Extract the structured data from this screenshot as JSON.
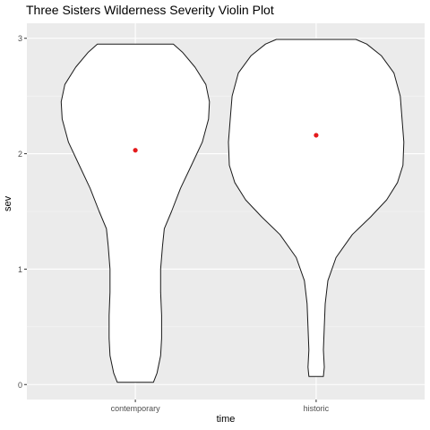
{
  "chart_data": {
    "type": "violin",
    "title": "Three Sisters Wilderness Severity Violin Plot",
    "xlabel": "time",
    "ylabel": "sev",
    "categories": [
      "contemporary",
      "historic"
    ],
    "ylim": [
      -0.13,
      3.13
    ],
    "yticks": [
      0,
      1,
      2,
      3
    ],
    "grid": true,
    "mean_point_color": "#e41a1c",
    "panel_background": "#ebebeb",
    "violins": [
      {
        "category": "contemporary",
        "mean": 2.03,
        "profile": [
          {
            "y": 0.02,
            "hw": 0.1
          },
          {
            "y": 0.1,
            "hw": 0.12
          },
          {
            "y": 0.25,
            "hw": 0.14
          },
          {
            "y": 0.4,
            "hw": 0.145
          },
          {
            "y": 0.6,
            "hw": 0.145
          },
          {
            "y": 0.8,
            "hw": 0.14
          },
          {
            "y": 1.0,
            "hw": 0.14
          },
          {
            "y": 1.2,
            "hw": 0.15
          },
          {
            "y": 1.35,
            "hw": 0.16
          },
          {
            "y": 1.5,
            "hw": 0.2
          },
          {
            "y": 1.7,
            "hw": 0.25
          },
          {
            "y": 1.9,
            "hw": 0.31
          },
          {
            "y": 2.1,
            "hw": 0.37
          },
          {
            "y": 2.3,
            "hw": 0.405
          },
          {
            "y": 2.45,
            "hw": 0.41
          },
          {
            "y": 2.6,
            "hw": 0.39
          },
          {
            "y": 2.75,
            "hw": 0.33
          },
          {
            "y": 2.88,
            "hw": 0.26
          },
          {
            "y": 2.95,
            "hw": 0.21
          }
        ]
      },
      {
        "category": "historic",
        "mean": 2.16,
        "profile": [
          {
            "y": 0.07,
            "hw": 0.04
          },
          {
            "y": 0.15,
            "hw": 0.045
          },
          {
            "y": 0.3,
            "hw": 0.04
          },
          {
            "y": 0.5,
            "hw": 0.045
          },
          {
            "y": 0.7,
            "hw": 0.05
          },
          {
            "y": 0.9,
            "hw": 0.065
          },
          {
            "y": 1.1,
            "hw": 0.11
          },
          {
            "y": 1.3,
            "hw": 0.2
          },
          {
            "y": 1.45,
            "hw": 0.3
          },
          {
            "y": 1.6,
            "hw": 0.39
          },
          {
            "y": 1.75,
            "hw": 0.45
          },
          {
            "y": 1.9,
            "hw": 0.48
          },
          {
            "y": 2.1,
            "hw": 0.485
          },
          {
            "y": 2.3,
            "hw": 0.475
          },
          {
            "y": 2.5,
            "hw": 0.465
          },
          {
            "y": 2.7,
            "hw": 0.43
          },
          {
            "y": 2.85,
            "hw": 0.36
          },
          {
            "y": 2.95,
            "hw": 0.28
          },
          {
            "y": 2.99,
            "hw": 0.22
          }
        ]
      }
    ]
  }
}
